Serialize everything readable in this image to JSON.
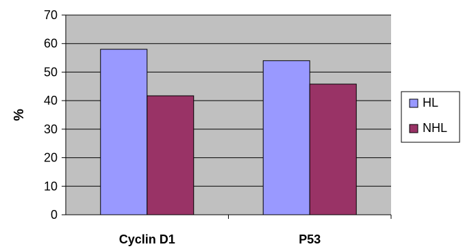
{
  "chart_data": {
    "type": "bar",
    "categories": [
      "Cyclin D1",
      "P53"
    ],
    "series": [
      {
        "name": "HL",
        "values": [
          58,
          54
        ],
        "color": "#9999ff"
      },
      {
        "name": "NHL",
        "values": [
          41.7,
          45.8
        ],
        "color": "#993366"
      }
    ],
    "ylabel": "%",
    "xlabel": "",
    "ylim": [
      0,
      70
    ],
    "yticks": [
      0,
      10,
      20,
      30,
      40,
      50,
      60,
      70
    ],
    "grid": true,
    "legend": "right",
    "plot_background": "#c0c0c0"
  }
}
